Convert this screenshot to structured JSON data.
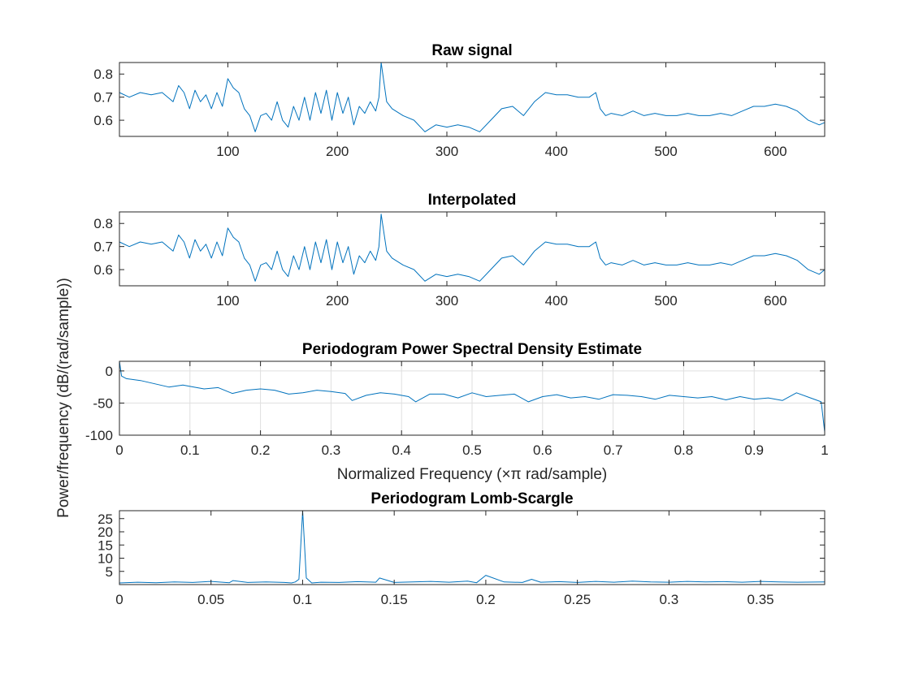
{
  "figure": {
    "ylabel": "Power/frequency (dB/(rad/sample))"
  },
  "colors": {
    "series": "#0072BD",
    "axes": "#262626",
    "grid": "#dfdfdf"
  },
  "chart_data": [
    {
      "id": "raw",
      "type": "line",
      "title": "Raw signal",
      "xlabel": "",
      "ylabel": "",
      "xlim": [
        1,
        645
      ],
      "ylim": [
        0.53,
        0.85
      ],
      "xticks": [
        100,
        200,
        300,
        400,
        500,
        600
      ],
      "yticks": [
        0.6,
        0.7,
        0.8
      ],
      "grid": false,
      "series": [
        {
          "x": [
            1,
            10,
            20,
            30,
            40,
            50,
            55,
            60,
            65,
            70,
            75,
            80,
            85,
            90,
            95,
            100,
            105,
            110,
            115,
            120,
            125,
            130,
            135,
            140,
            145,
            150,
            155,
            160,
            165,
            170,
            175,
            180,
            185,
            190,
            195,
            200,
            205,
            210,
            215,
            220,
            225,
            230,
            235,
            238,
            240,
            245,
            250,
            260,
            270,
            280,
            290,
            300,
            310,
            320,
            330,
            340,
            350,
            360,
            370,
            380,
            390,
            400,
            410,
            420,
            430,
            436,
            440,
            445,
            450,
            460,
            470,
            480,
            490,
            500,
            510,
            520,
            530,
            540,
            550,
            560,
            570,
            580,
            590,
            600,
            610,
            620,
            630,
            640,
            645
          ],
          "y": [
            0.72,
            0.7,
            0.72,
            0.71,
            0.72,
            0.68,
            0.75,
            0.72,
            0.65,
            0.73,
            0.68,
            0.71,
            0.65,
            0.72,
            0.66,
            0.78,
            0.74,
            0.72,
            0.65,
            0.62,
            0.55,
            0.62,
            0.63,
            0.6,
            0.68,
            0.6,
            0.57,
            0.66,
            0.6,
            0.7,
            0.6,
            0.72,
            0.63,
            0.73,
            0.6,
            0.72,
            0.63,
            0.7,
            0.58,
            0.66,
            0.63,
            0.68,
            0.64,
            0.7,
            0.85,
            0.68,
            0.65,
            0.62,
            0.6,
            0.55,
            0.58,
            0.57,
            0.58,
            0.57,
            0.55,
            0.6,
            0.65,
            0.66,
            0.62,
            0.68,
            0.72,
            0.71,
            0.71,
            0.7,
            0.7,
            0.72,
            0.65,
            0.62,
            0.63,
            0.62,
            0.64,
            0.62,
            0.63,
            0.62,
            0.62,
            0.63,
            0.62,
            0.62,
            0.63,
            0.62,
            0.64,
            0.66,
            0.66,
            0.67,
            0.66,
            0.64,
            0.6,
            0.58,
            0.59
          ]
        }
      ]
    },
    {
      "id": "interp",
      "type": "line",
      "title": "Interpolated",
      "xlabel": "",
      "ylabel": "",
      "xlim": [
        1,
        645
      ],
      "ylim": [
        0.53,
        0.85
      ],
      "xticks": [
        100,
        200,
        300,
        400,
        500,
        600
      ],
      "yticks": [
        0.6,
        0.7,
        0.8
      ],
      "grid": false,
      "series": [
        {
          "x": [
            1,
            10,
            20,
            30,
            40,
            50,
            55,
            60,
            65,
            70,
            75,
            80,
            85,
            90,
            95,
            100,
            105,
            110,
            115,
            120,
            125,
            130,
            135,
            140,
            145,
            150,
            155,
            160,
            165,
            170,
            175,
            180,
            185,
            190,
            195,
            200,
            205,
            210,
            215,
            220,
            225,
            230,
            235,
            238,
            240,
            245,
            250,
            260,
            270,
            280,
            290,
            300,
            310,
            320,
            330,
            340,
            350,
            360,
            370,
            380,
            390,
            400,
            410,
            420,
            430,
            436,
            440,
            445,
            450,
            460,
            470,
            480,
            490,
            500,
            510,
            520,
            530,
            540,
            550,
            560,
            570,
            580,
            590,
            600,
            610,
            620,
            630,
            640,
            645
          ],
          "y": [
            0.72,
            0.7,
            0.72,
            0.71,
            0.72,
            0.68,
            0.75,
            0.72,
            0.65,
            0.73,
            0.68,
            0.71,
            0.65,
            0.72,
            0.66,
            0.78,
            0.74,
            0.72,
            0.65,
            0.62,
            0.55,
            0.62,
            0.63,
            0.6,
            0.68,
            0.6,
            0.57,
            0.66,
            0.6,
            0.7,
            0.6,
            0.72,
            0.63,
            0.73,
            0.6,
            0.72,
            0.63,
            0.7,
            0.58,
            0.66,
            0.63,
            0.68,
            0.64,
            0.7,
            0.84,
            0.68,
            0.65,
            0.62,
            0.6,
            0.55,
            0.58,
            0.57,
            0.58,
            0.57,
            0.55,
            0.6,
            0.65,
            0.66,
            0.62,
            0.68,
            0.72,
            0.71,
            0.71,
            0.7,
            0.7,
            0.72,
            0.65,
            0.62,
            0.63,
            0.62,
            0.64,
            0.62,
            0.63,
            0.62,
            0.62,
            0.63,
            0.62,
            0.62,
            0.63,
            0.62,
            0.64,
            0.66,
            0.66,
            0.67,
            0.66,
            0.64,
            0.6,
            0.58,
            0.6
          ]
        }
      ]
    },
    {
      "id": "psd",
      "type": "line",
      "title": "Periodogram Power Spectral Density Estimate",
      "xlabel": "Normalized Frequency  (×π rad/sample)",
      "ylabel": "",
      "xlim": [
        0,
        1
      ],
      "ylim": [
        -100,
        15
      ],
      "xticks": [
        0,
        0.1,
        0.2,
        0.3,
        0.4,
        0.5,
        0.6,
        0.7,
        0.8,
        0.9,
        1
      ],
      "xtick_labels": [
        "0",
        "0.1",
        "0.2",
        "0.3",
        "0.4",
        "0.5",
        "0.6",
        "0.7",
        "0.8",
        "0.9",
        "1"
      ],
      "yticks": [
        -100,
        -50,
        0
      ],
      "grid": true,
      "series": [
        {
          "x": [
            0,
            0.003,
            0.01,
            0.03,
            0.05,
            0.07,
            0.09,
            0.1,
            0.12,
            0.14,
            0.16,
            0.18,
            0.2,
            0.22,
            0.24,
            0.26,
            0.28,
            0.3,
            0.32,
            0.33,
            0.35,
            0.37,
            0.39,
            0.41,
            0.42,
            0.44,
            0.46,
            0.48,
            0.5,
            0.52,
            0.54,
            0.56,
            0.58,
            0.6,
            0.62,
            0.64,
            0.66,
            0.68,
            0.7,
            0.72,
            0.74,
            0.76,
            0.78,
            0.8,
            0.82,
            0.84,
            0.86,
            0.88,
            0.9,
            0.92,
            0.94,
            0.96,
            0.98,
            0.995,
            1
          ],
          "y": [
            15,
            -8,
            -12,
            -15,
            -20,
            -25,
            -22,
            -24,
            -28,
            -26,
            -35,
            -30,
            -28,
            -30,
            -36,
            -34,
            -30,
            -32,
            -35,
            -46,
            -38,
            -34,
            -36,
            -40,
            -48,
            -36,
            -36,
            -42,
            -34,
            -40,
            -38,
            -36,
            -48,
            -40,
            -37,
            -42,
            -40,
            -44,
            -37,
            -38,
            -40,
            -44,
            -38,
            -40,
            -42,
            -40,
            -45,
            -40,
            -44,
            -42,
            -46,
            -34,
            -42,
            -48,
            -95
          ]
        }
      ]
    },
    {
      "id": "lomb",
      "type": "line",
      "title": "Periodogram Lomb-Scargle",
      "xlabel": "",
      "ylabel": "",
      "xlim": [
        0,
        0.385
      ],
      "ylim": [
        0,
        28
      ],
      "xticks": [
        0,
        0.05,
        0.1,
        0.15,
        0.2,
        0.25,
        0.3,
        0.35
      ],
      "xtick_labels": [
        "0",
        "0.05",
        "0.1",
        "0.15",
        "0.2",
        "0.25",
        "0.3",
        "0.35"
      ],
      "yticks": [
        5,
        10,
        15,
        20,
        25
      ],
      "grid": false,
      "series": [
        {
          "x": [
            0,
            0.01,
            0.02,
            0.03,
            0.04,
            0.05,
            0.06,
            0.062,
            0.07,
            0.08,
            0.09,
            0.094,
            0.096,
            0.098,
            0.1,
            0.102,
            0.105,
            0.11,
            0.12,
            0.13,
            0.14,
            0.142,
            0.15,
            0.16,
            0.17,
            0.18,
            0.19,
            0.195,
            0.2,
            0.21,
            0.22,
            0.225,
            0.23,
            0.24,
            0.25,
            0.26,
            0.27,
            0.28,
            0.29,
            0.3,
            0.31,
            0.32,
            0.33,
            0.34,
            0.35,
            0.36,
            0.37,
            0.385
          ],
          "y": [
            0.6,
            0.9,
            0.7,
            1.0,
            0.8,
            1.2,
            0.7,
            1.5,
            0.8,
            1.0,
            0.8,
            0.6,
            1.0,
            2.0,
            28,
            2.5,
            0.6,
            0.9,
            0.8,
            1.1,
            0.9,
            2.5,
            0.8,
            1.0,
            1.2,
            0.9,
            1.3,
            0.7,
            3.5,
            1.0,
            0.8,
            2.0,
            0.9,
            1.1,
            0.8,
            1.2,
            0.9,
            1.3,
            1.0,
            0.9,
            1.2,
            1.0,
            1.1,
            0.9,
            1.2,
            1.0,
            0.9,
            1.0
          ]
        }
      ]
    }
  ]
}
